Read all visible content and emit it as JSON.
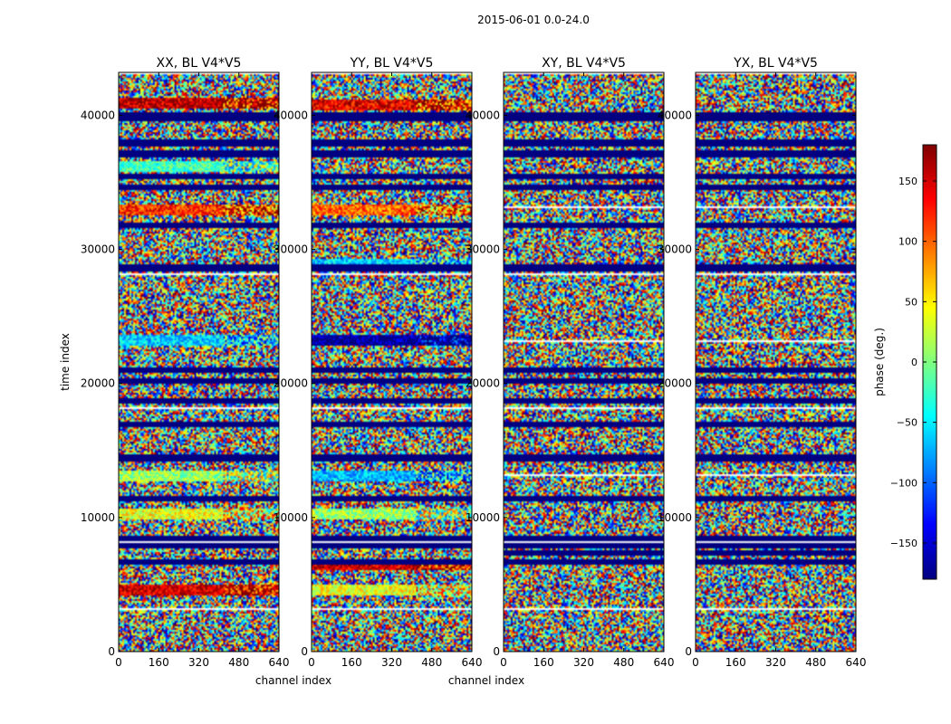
{
  "figure": {
    "suptitle": "2015-06-01 0.0-24.0"
  },
  "chart_data": [
    {
      "type": "heatmap",
      "title": "XX, BL V4*V5",
      "xlabel": "channel index",
      "ylabel": "time index",
      "x_range": [
        0,
        640
      ],
      "y_range": [
        0,
        43200
      ],
      "x_ticks": [
        0,
        160,
        320,
        480,
        640
      ],
      "y_ticks": [
        0,
        10000,
        20000,
        30000,
        40000
      ],
      "colormap": "jet",
      "value_range": [
        -180,
        180
      ],
      "bands": [
        {
          "y": 4600,
          "phase": 150,
          "span": 220
        },
        {
          "y": 10300,
          "phase": 40,
          "span": 260
        },
        {
          "y": 13200,
          "phase": 10,
          "span": 240
        },
        {
          "y": 23300,
          "phase": -60,
          "span": 240
        },
        {
          "y": 33000,
          "phase": 120,
          "span": 260
        },
        {
          "y": 36200,
          "phase": -20,
          "span": 220
        },
        {
          "y": 41000,
          "phase": 160,
          "span": 260
        }
      ],
      "masked": [
        6700,
        8000,
        8500,
        11500,
        14500,
        17000,
        18800,
        20200,
        21100,
        28700,
        31900,
        34700,
        35500,
        37200,
        38000,
        39800,
        40100
      ]
    },
    {
      "type": "heatmap",
      "title": "YY, BL V4*V5",
      "xlabel": "channel index",
      "ylabel": "",
      "x_range": [
        0,
        640
      ],
      "y_range": [
        0,
        43200
      ],
      "x_ticks": [
        0,
        160,
        320,
        480,
        640
      ],
      "y_ticks": [
        0,
        10000,
        20000,
        30000,
        40000
      ],
      "colormap": "jet",
      "value_range": [
        -180,
        180
      ],
      "bands": [
        {
          "y": 4600,
          "phase": 40,
          "span": 240
        },
        {
          "y": 6500,
          "phase": 150,
          "span": 240
        },
        {
          "y": 10300,
          "phase": 10,
          "span": 260
        },
        {
          "y": 13200,
          "phase": -70,
          "span": 240
        },
        {
          "y": 23300,
          "phase": -170,
          "span": 240
        },
        {
          "y": 29000,
          "phase": -60,
          "span": 220
        },
        {
          "y": 33000,
          "phase": 100,
          "span": 260
        },
        {
          "y": 40800,
          "phase": 140,
          "span": 260
        }
      ],
      "masked": [
        6700,
        8000,
        8500,
        11500,
        14500,
        17000,
        18800,
        20200,
        21100,
        28700,
        31900,
        34700,
        35500,
        37200,
        38000,
        39800,
        40100
      ]
    },
    {
      "type": "heatmap",
      "title": "XY, BL V4*V5",
      "xlabel": "",
      "ylabel": "",
      "x_range": [
        0,
        640
      ],
      "y_range": [
        0,
        43200
      ],
      "x_ticks": [
        0,
        160,
        320,
        480,
        640
      ],
      "y_ticks": [
        0,
        10000,
        20000,
        30000,
        40000
      ],
      "colormap": "jet",
      "value_range": [
        -180,
        180
      ],
      "bands": [],
      "masked": [
        6700,
        7400,
        8000,
        8500,
        11500,
        14500,
        17000,
        18800,
        20200,
        21100,
        28700,
        31900,
        34700,
        35500,
        37200,
        38000,
        39800,
        40100
      ]
    },
    {
      "type": "heatmap",
      "title": "YX, BL V4*V5",
      "xlabel": "",
      "ylabel": "",
      "x_range": [
        0,
        640
      ],
      "y_range": [
        0,
        43200
      ],
      "x_ticks": [
        0,
        160,
        320,
        480,
        640
      ],
      "y_ticks": [
        0,
        10000,
        20000,
        30000,
        40000
      ],
      "colormap": "jet",
      "value_range": [
        -180,
        180
      ],
      "bands": [],
      "masked": [
        6700,
        7400,
        8000,
        8500,
        11500,
        14500,
        17000,
        18800,
        20200,
        21100,
        28700,
        31900,
        34700,
        35500,
        37200,
        38000,
        39800,
        40100
      ]
    }
  ],
  "colorbar": {
    "label": "phase (deg.)",
    "range": [
      -180,
      180
    ],
    "ticks": [
      -150,
      -100,
      -50,
      0,
      50,
      100,
      150
    ],
    "tick_labels": [
      "−150",
      "−100",
      "−50",
      "0",
      "50",
      "100",
      "150"
    ],
    "colormap": "jet"
  }
}
